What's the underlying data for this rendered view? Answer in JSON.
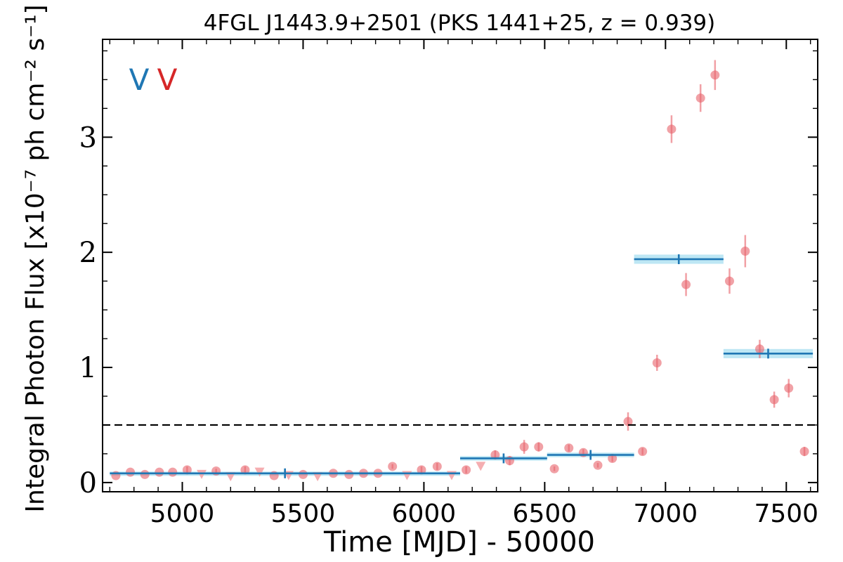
{
  "chart_data": {
    "type": "scatter",
    "title": "4FGL J1443.9+2501 (PKS 1441+25, z = 0.939)",
    "xlabel": "Time [MJD] - 50000",
    "ylabel": "Integral Photon Flux [x10⁻⁷ ph cm⁻² s⁻¹]",
    "xlim": [
      4670,
      7630
    ],
    "ylim": [
      -0.08,
      3.85
    ],
    "xticks": [
      5000,
      5500,
      6000,
      6500,
      7000,
      7500
    ],
    "yticks": [
      0,
      1,
      2,
      3
    ],
    "grid": false,
    "threshold": 0.5,
    "markers": [
      {
        "label": "V",
        "color": "#1f77b4"
      },
      {
        "label": "V",
        "color": "#d62728"
      }
    ],
    "series": [
      {
        "kind": "points",
        "color": "#e8626a",
        "points": [
          {
            "x": 4725,
            "y": 0.06,
            "err": 0
          },
          {
            "x": 4785,
            "y": 0.09,
            "err": 0
          },
          {
            "x": 4845,
            "y": 0.07,
            "err": 0
          },
          {
            "x": 4905,
            "y": 0.09,
            "err": 0
          },
          {
            "x": 4960,
            "y": 0.09,
            "err": 0
          },
          {
            "x": 5020,
            "y": 0.11,
            "err": 0.03
          },
          {
            "x": 5140,
            "y": 0.1,
            "err": 0.02
          },
          {
            "x": 5260,
            "y": 0.11,
            "err": 0.03
          },
          {
            "x": 5380,
            "y": 0.06,
            "err": 0
          },
          {
            "x": 5500,
            "y": 0.07,
            "err": 0
          },
          {
            "x": 5625,
            "y": 0.08,
            "err": 0
          },
          {
            "x": 5690,
            "y": 0.07,
            "err": 0
          },
          {
            "x": 5750,
            "y": 0.08,
            "err": 0
          },
          {
            "x": 5810,
            "y": 0.08,
            "err": 0
          },
          {
            "x": 5870,
            "y": 0.14,
            "err": 0.02
          },
          {
            "x": 5990,
            "y": 0.11,
            "err": 0.03
          },
          {
            "x": 6055,
            "y": 0.14,
            "err": 0.03
          },
          {
            "x": 6175,
            "y": 0.11,
            "err": 0.03
          },
          {
            "x": 6295,
            "y": 0.24,
            "err": 0.04
          },
          {
            "x": 6355,
            "y": 0.19,
            "err": 0.04
          },
          {
            "x": 6415,
            "y": 0.31,
            "err": 0.06
          },
          {
            "x": 6475,
            "y": 0.31,
            "err": 0.04
          },
          {
            "x": 6540,
            "y": 0.12,
            "err": 0.02
          },
          {
            "x": 6600,
            "y": 0.3,
            "err": 0.03
          },
          {
            "x": 6660,
            "y": 0.26,
            "err": 0.03
          },
          {
            "x": 6720,
            "y": 0.15,
            "err": 0.02
          },
          {
            "x": 6780,
            "y": 0.21,
            "err": 0.03
          },
          {
            "x": 6845,
            "y": 0.53,
            "err": 0.08
          },
          {
            "x": 6905,
            "y": 0.27,
            "err": 0.03
          },
          {
            "x": 6965,
            "y": 1.04,
            "err": 0.07
          },
          {
            "x": 7025,
            "y": 3.07,
            "err": 0.12
          },
          {
            "x": 7085,
            "y": 1.72,
            "err": 0.1
          },
          {
            "x": 7145,
            "y": 3.34,
            "err": 0.12
          },
          {
            "x": 7205,
            "y": 3.54,
            "err": 0.13
          },
          {
            "x": 7265,
            "y": 1.75,
            "err": 0.11
          },
          {
            "x": 7330,
            "y": 2.01,
            "err": 0.14
          },
          {
            "x": 7390,
            "y": 1.16,
            "err": 0.08
          },
          {
            "x": 7450,
            "y": 0.72,
            "err": 0.07
          },
          {
            "x": 7510,
            "y": 0.82,
            "err": 0.08
          },
          {
            "x": 7575,
            "y": 0.27,
            "err": 0.04
          }
        ]
      },
      {
        "kind": "upper_limits",
        "color": "#f4a5a9",
        "points": [
          {
            "x": 5080,
            "y": 0.11
          },
          {
            "x": 5200,
            "y": 0.09
          },
          {
            "x": 5320,
            "y": 0.13
          },
          {
            "x": 5440,
            "y": 0.1
          },
          {
            "x": 5560,
            "y": 0.09
          },
          {
            "x": 5930,
            "y": 0.1
          },
          {
            "x": 6115,
            "y": 0.1
          },
          {
            "x": 6235,
            "y": 0.18
          }
        ]
      },
      {
        "kind": "blocks",
        "color": "#1f77b4",
        "band_color": "#a8dff0",
        "blocks": [
          {
            "x0": 4700,
            "x1": 6150,
            "y": 0.08,
            "err": 0.015
          },
          {
            "x0": 6150,
            "x1": 6510,
            "y": 0.21,
            "err": 0.02
          },
          {
            "x0": 6510,
            "x1": 6870,
            "y": 0.24,
            "err": 0.02
          },
          {
            "x0": 6870,
            "x1": 7240,
            "y": 1.94,
            "err": 0.04
          },
          {
            "x0": 7240,
            "x1": 7610,
            "y": 1.12,
            "err": 0.04
          }
        ]
      }
    ]
  }
}
